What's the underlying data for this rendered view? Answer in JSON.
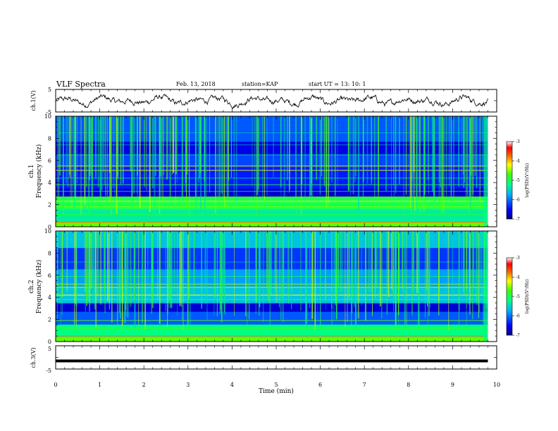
{
  "header": {
    "title": "VLF Spectra",
    "date": "Feb. 13, 2018",
    "station": "station=KAP",
    "start": "start  UT =   13: 10: 1"
  },
  "xaxis": {
    "label": "Time  (min)",
    "ticks": [
      "0",
      "1",
      "2",
      "3",
      "4",
      "5",
      "6",
      "7",
      "8",
      "9",
      "10"
    ],
    "range": [
      0,
      10
    ]
  },
  "channels": {
    "ch1_wave": {
      "ylabel": "ch.1(V)",
      "ticks": [
        "5",
        "-5"
      ],
      "ylim": [
        -5,
        5
      ]
    },
    "ch1_spec": {
      "ylabel_top": "ch.1",
      "ylabel": "Frequency  (kHz)",
      "ticks": [
        "0",
        "2",
        "4",
        "6",
        "8",
        "10"
      ],
      "ylim": [
        0,
        10
      ]
    },
    "ch2_spec": {
      "ylabel_top": "ch.2",
      "ylabel": "Frequency  (kHz)",
      "ticks": [
        "0",
        "2",
        "4",
        "6",
        "8",
        "10"
      ],
      "ylim": [
        0,
        10
      ]
    },
    "ch3_wave": {
      "ylabel": "ch.3(V)",
      "ticks": [
        "5",
        "-5"
      ],
      "ylim": [
        -5,
        5
      ]
    }
  },
  "colorbar": {
    "label": "log(PSD)(V²/Hz)",
    "ticks": [
      "-3",
      "-4",
      "-5",
      "-6",
      "-7"
    ],
    "range": [
      -7,
      -3
    ]
  },
  "chart_data": [
    {
      "type": "line",
      "name": "ch1_waveform",
      "x_range": [
        0,
        9.8
      ],
      "y_level": 0,
      "ylim": [
        -5,
        5
      ]
    },
    {
      "type": "heatmap",
      "name": "ch1_spectrogram",
      "x_range": [
        0,
        9.8
      ],
      "ylim": [
        0,
        10
      ],
      "zlim": [
        -7,
        -3
      ]
    },
    {
      "type": "heatmap",
      "name": "ch2_spectrogram",
      "x_range": [
        0,
        9.8
      ],
      "ylim": [
        0,
        10
      ],
      "zlim": [
        -7,
        -3
      ]
    },
    {
      "type": "line",
      "name": "ch3_waveform",
      "x_range": [
        0,
        9.8
      ],
      "y_level": -1.5,
      "ylim": [
        -5,
        5
      ]
    }
  ]
}
